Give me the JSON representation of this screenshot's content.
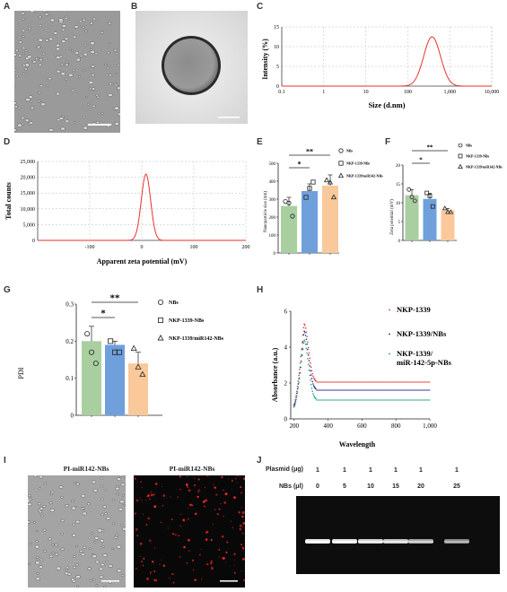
{
  "panels": {
    "A": "A",
    "B": "B",
    "C": "C",
    "D": "D",
    "E": "E",
    "F": "F",
    "G": "G",
    "H": "H",
    "I": "I",
    "J": "J"
  },
  "colors": {
    "green": "#a9cfa0",
    "blue": "#6fa0dc",
    "orange": "#f9c99b",
    "red": "#e8322e",
    "navy": "#1d2a8c",
    "teal": "#1aa37a",
    "gel_bg": "#0d0d0d",
    "gel_band": "#e6e6e6",
    "fluor_red": "#ff2a2a",
    "legend_grey": "#555555"
  },
  "chart_data": [
    {
      "id": "C",
      "type": "line",
      "xscale": "log",
      "xlabel": "Size (d.nm)",
      "ylabel": "Intensity (%)",
      "xlim": [
        0.1,
        10000
      ],
      "ylim": [
        0,
        15
      ],
      "xticks": [
        0.1,
        1,
        10,
        100,
        1000,
        10000
      ],
      "xtick_labels": [
        "0.1",
        "1",
        "10",
        "100",
        "1,000",
        "10,000"
      ],
      "yticks": [
        0,
        5,
        10,
        15
      ],
      "peak": {
        "center": 380,
        "height": 12.5,
        "log_sigma": 0.2
      },
      "grid": true
    },
    {
      "id": "D",
      "type": "line",
      "xlabel": "Apparent zeta potential (mV)",
      "ylabel": "Total counts",
      "xlim": [
        -200,
        200
      ],
      "ylim": [
        0,
        25000
      ],
      "xticks": [
        -100,
        0,
        100,
        200
      ],
      "xtick_labels": [
        "-100",
        "0",
        "100",
        "200"
      ],
      "yticks": [
        0,
        5000,
        10000,
        15000,
        20000,
        25000
      ],
      "ytick_labels": [
        "0",
        "5,000",
        "10,000",
        "15,000",
        "20,000",
        "25,000"
      ],
      "peak": {
        "center": 8,
        "height": 21000,
        "sigma": 9
      },
      "grid": true
    },
    {
      "id": "E",
      "type": "bar",
      "ylabel": "Nanoparticle size (nm)",
      "ylim": [
        0,
        500
      ],
      "yticks": [
        0,
        100,
        200,
        300,
        400,
        500
      ],
      "categories": [
        "NBs",
        "NKP-1339-NBs",
        "NKP-1339/miR142-NBs"
      ],
      "values": [
        262,
        345,
        375
      ],
      "errors": [
        48,
        40,
        60
      ],
      "points": [
        [
          287,
          278,
          205
        ],
        [
          310,
          360,
          395
        ],
        [
          405,
          393,
          310
        ]
      ],
      "legend": [
        "NBs",
        "NKP-1339-NBs",
        "NKP-1339/miR142-NBs"
      ],
      "sig": [
        "*",
        "**"
      ]
    },
    {
      "id": "F",
      "type": "bar",
      "ylabel": "Zeta potential (mV)",
      "ylim": [
        0,
        20
      ],
      "yticks": [
        0,
        5,
        10,
        15,
        20
      ],
      "categories": [
        "NBs",
        "NKP-1339-NBs",
        "NKP-1339/miR142-NBs"
      ],
      "values": [
        12,
        11,
        8
      ],
      "errors": [
        1.5,
        1.5,
        0.5
      ],
      "points": [
        [
          13.5,
          11.5,
          10.5
        ],
        [
          12.6,
          11.8,
          9
        ],
        [
          8.5,
          7.5,
          7.5
        ]
      ],
      "legend": [
        "NBs",
        "NKP-1339-NBs",
        "NKP-1339/miR142-NBs"
      ],
      "sig": [
        "*",
        "**"
      ]
    },
    {
      "id": "G",
      "type": "bar",
      "ylabel": "PDI",
      "ylim": [
        0,
        0.3
      ],
      "yticks": [
        0,
        0.1,
        0.2,
        0.3
      ],
      "ytick_labels": [
        "0",
        "0.1",
        "0.2",
        "0.3"
      ],
      "categories": [
        "NBs",
        "NKP-1339-NBs",
        "NKP-1339/miR142-NBs"
      ],
      "values": [
        0.2,
        0.19,
        0.14
      ],
      "errors": [
        0.04,
        0.01,
        0.03
      ],
      "points": [
        [
          0.22,
          0.17,
          0.14
        ],
        [
          0.2,
          0.17,
          0.17
        ],
        [
          0.18,
          0.13,
          0.11
        ]
      ],
      "legend": [
        "NBs",
        "NKP-1339-NBs",
        "NKP-1339/miR142-NBs"
      ],
      "sig": [
        "*",
        "**"
      ]
    },
    {
      "id": "H",
      "type": "scatter",
      "xlabel": "Wavelength",
      "ylabel": "Absorbance (a.u.)",
      "xlim": [
        180,
        1000
      ],
      "ylim": [
        0,
        6
      ],
      "xticks": [
        200,
        400,
        600,
        800,
        1000
      ],
      "xtick_labels": [
        "200",
        "400",
        "600",
        "800",
        "1,000"
      ],
      "yticks": [
        0,
        2,
        4,
        6
      ],
      "series": [
        {
          "name": "NKP-1339",
          "peak": 5.3,
          "plateau": 2.05
        },
        {
          "name": "NKP-1339/NBs",
          "peak": 4.9,
          "plateau": 1.6
        },
        {
          "name": "NKP-1339/ miR-142-5p-NBs",
          "peak": 4.4,
          "plateau": 1.05
        }
      ]
    }
  ],
  "I": {
    "left_title": "PI-miR142-NBs",
    "right_title": "PI-miR142-NBs"
  },
  "J": {
    "row1_label": "Plasmid (μg)",
    "row2_label": "NBs (μl)",
    "plasmid": [
      "1",
      "1",
      "1",
      "1",
      "1",
      "1"
    ],
    "nbs": [
      "0",
      "5",
      "10",
      "15",
      "20",
      "25"
    ],
    "band_intensity": [
      1.0,
      0.95,
      0.85,
      0.75,
      0.55,
      0.35
    ]
  }
}
